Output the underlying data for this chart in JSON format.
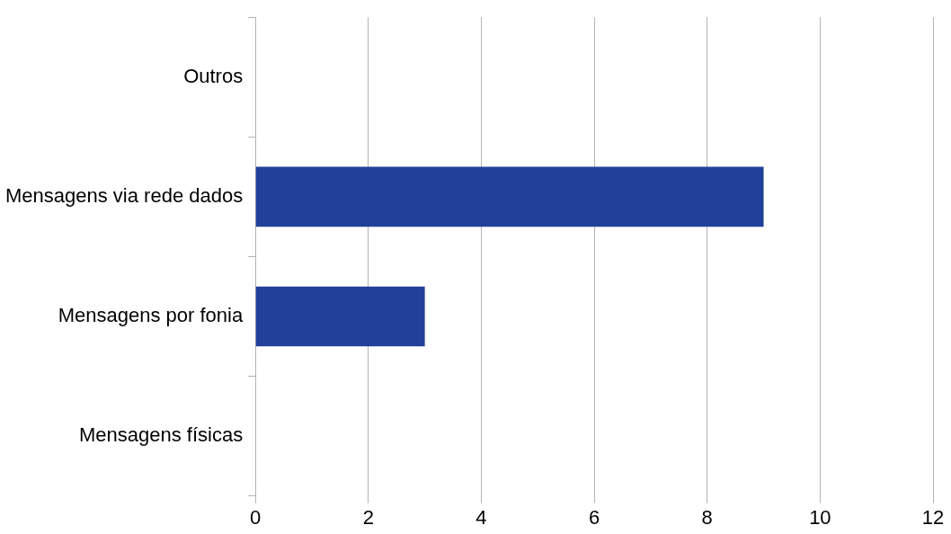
{
  "chart_data": {
    "type": "bar",
    "orientation": "horizontal",
    "categories": [
      "Outros",
      "Mensagens via rede dados",
      "Mensagens por fonia",
      "Mensagens físicas"
    ],
    "values": [
      0,
      9,
      3,
      0
    ],
    "color": "#21409a",
    "xlim": [
      0,
      12
    ],
    "xticks": [
      0,
      2,
      4,
      6,
      8,
      10,
      12
    ],
    "grid": "x",
    "legend": false
  }
}
